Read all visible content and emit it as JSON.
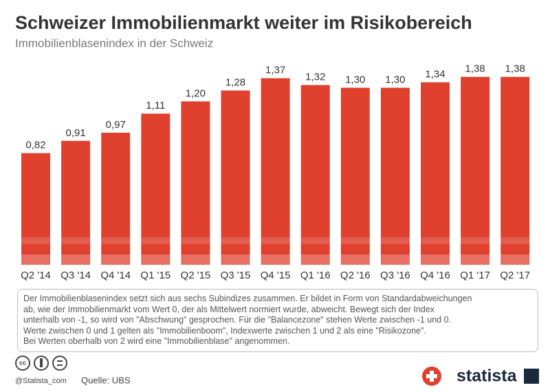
{
  "chart_data": {
    "type": "bar",
    "title": "Schweizer Immobilienmarkt weiter im Risikobereich",
    "subtitle": "Immobilienblasenindex in der Schweiz",
    "categories": [
      "Q2 '14",
      "Q3 '14",
      "Q4 '14",
      "Q1 '15",
      "Q2 '15",
      "Q3 '15",
      "Q4 '15",
      "Q1 '16",
      "Q2 '16",
      "Q3 '16",
      "Q4 '16",
      "Q1 '17",
      "Q2 '17"
    ],
    "values": [
      0.82,
      0.91,
      0.97,
      1.11,
      1.2,
      1.28,
      1.37,
      1.32,
      1.3,
      1.3,
      1.34,
      1.38,
      1.38
    ],
    "value_labels": [
      "0,82",
      "0,91",
      "0,97",
      "1,11",
      "1,20",
      "1,28",
      "1,37",
      "1,32",
      "1,30",
      "1,30",
      "1,34",
      "1,38",
      "1,38"
    ],
    "color": "#e0402e"
  },
  "note": [
    "Der Immobilienblasenindex setzt sich aus sechs Subindizes zusammen. Er bildet in Form von Standardabweichungen",
    "ab, wie der Immobilienmarkt vom Wert 0, der als Mittelwert normiert wurde, abweicht. Bewegt sich der Index",
    "unterhalb von -1, so wird von \"Abschwung\" gesprochen. Für die \"Balancezone\" stehen Werte zwischen -1 und 0.",
    "Werte zwischen 0 und 1 gelten als \"Immobilienboom\", Indexwerte zwischen 1 und 2 als eine \"Risikozone\".",
    "Bei Werten oberhalb von 2 wird eine \"Immobilienblase\" angenommen."
  ],
  "footer": {
    "handle": "@Statista_com",
    "source": "Quelle: UBS",
    "brand": "statista"
  }
}
